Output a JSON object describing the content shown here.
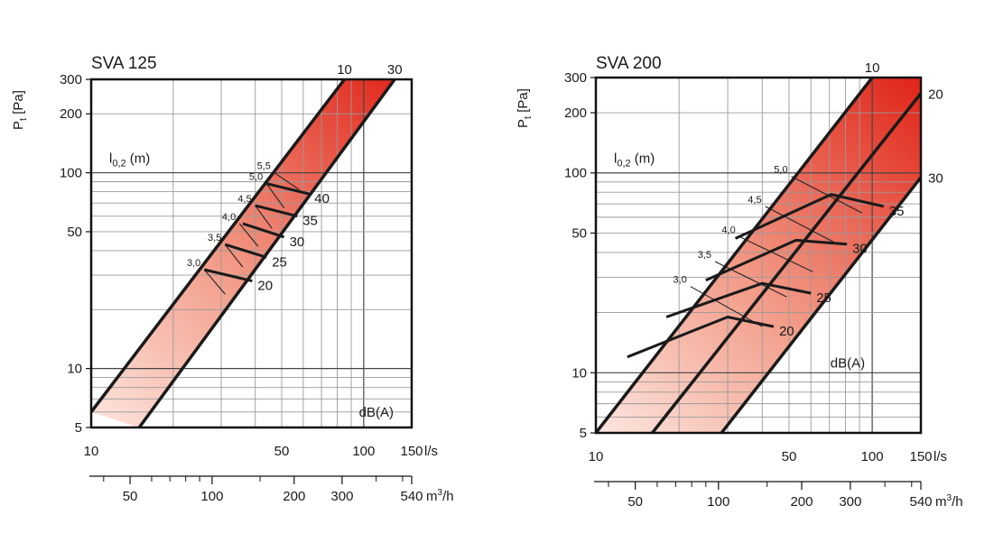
{
  "chart_data": [
    {
      "type": "line",
      "title": "SVA 125",
      "ylabel": "P",
      "ylabel_sub": "t",
      "ylabel_unit": "[Pa]",
      "xunit": "l/s",
      "x2unit": "m",
      "x2unit_sup": "3",
      "x2unit_rest": "/h",
      "xscale": "log",
      "yscale": "log",
      "xlim": [
        10,
        150
      ],
      "ylim": [
        5,
        300
      ],
      "x_ticks": [
        {
          "v": 10,
          "label": "10"
        },
        {
          "v": 50,
          "label": "50"
        },
        {
          "v": 100,
          "label": "100"
        },
        {
          "v": 150,
          "label": "150"
        }
      ],
      "y_ticks": [
        {
          "v": 5,
          "label": "5"
        },
        {
          "v": 10,
          "label": "10"
        },
        {
          "v": 50,
          "label": "50"
        },
        {
          "v": 100,
          "label": "100"
        },
        {
          "v": 200,
          "label": "200"
        },
        {
          "v": 300,
          "label": "300"
        }
      ],
      "x2_ticks": [
        {
          "v": 50,
          "label": "50"
        },
        {
          "v": 100,
          "label": "100"
        },
        {
          "v": 200,
          "label": "200"
        },
        {
          "v": 300,
          "label": "300"
        },
        {
          "v": 540,
          "label": "540"
        }
      ],
      "throw_label": "l",
      "throw_label_sub": "0,2",
      "throw_label_rest": " (m)",
      "db_label": "dB(A)",
      "band_colors": [
        "#fde6df",
        "#e02418"
      ],
      "boundaries": [
        {
          "label": "10",
          "points": [
            [
              10,
              6
            ],
            [
              85,
              300
            ]
          ]
        },
        {
          "label": "30",
          "points": [
            [
              15,
              5
            ],
            [
              130,
              300
            ]
          ]
        }
      ],
      "noise_lines": [
        {
          "label": "20",
          "points": [
            [
              26,
              32
            ],
            [
              39,
              28
            ]
          ]
        },
        {
          "label": "25",
          "points": [
            [
              31,
              43
            ],
            [
              44,
              37
            ]
          ]
        },
        {
          "label": "30",
          "points": [
            [
              36,
              55
            ],
            [
              51,
              47
            ]
          ]
        },
        {
          "label": "35",
          "points": [
            [
              40,
              68
            ],
            [
              57,
              60
            ]
          ]
        },
        {
          "label": "40",
          "points": [
            [
              44,
              88
            ],
            [
              63,
              78
            ]
          ]
        }
      ],
      "throw_lines": [
        {
          "label": "3,0",
          "points": [
            [
              26,
              32
            ],
            [
              31,
              24
            ]
          ]
        },
        {
          "label": "3,5",
          "points": [
            [
              31,
              43
            ],
            [
              36,
              33
            ]
          ]
        },
        {
          "label": "4,0",
          "points": [
            [
              35,
              55
            ],
            [
              41,
              42
            ]
          ]
        },
        {
          "label": "4,5",
          "points": [
            [
              40,
              68
            ],
            [
              46,
              52
            ]
          ]
        },
        {
          "label": "5,0",
          "points": [
            [
              44,
              88
            ],
            [
              51,
              66
            ]
          ]
        },
        {
          "label": "5,5",
          "points": [
            [
              47,
              100
            ],
            [
              58,
              82
            ]
          ]
        }
      ]
    },
    {
      "type": "line",
      "title": "SVA 200",
      "ylabel": "P",
      "ylabel_sub": "t",
      "ylabel_unit": "[Pa]",
      "xunit": "l/s",
      "x2unit": "m",
      "x2unit_sup": "3",
      "x2unit_rest": "/h",
      "xscale": "log",
      "yscale": "log",
      "xlim": [
        10,
        150
      ],
      "ylim": [
        5,
        300
      ],
      "x_ticks": [
        {
          "v": 10,
          "label": "10"
        },
        {
          "v": 50,
          "label": "50"
        },
        {
          "v": 100,
          "label": "100"
        },
        {
          "v": 150,
          "label": "150"
        }
      ],
      "y_ticks": [
        {
          "v": 5,
          "label": "5"
        },
        {
          "v": 10,
          "label": "10"
        },
        {
          "v": 50,
          "label": "50"
        },
        {
          "v": 100,
          "label": "100"
        },
        {
          "v": 200,
          "label": "200"
        },
        {
          "v": 300,
          "label": "300"
        }
      ],
      "x2_ticks": [
        {
          "v": 50,
          "label": "50"
        },
        {
          "v": 100,
          "label": "100"
        },
        {
          "v": 200,
          "label": "200"
        },
        {
          "v": 300,
          "label": "300"
        },
        {
          "v": 540,
          "label": "540"
        }
      ],
      "throw_label": "l",
      "throw_label_sub": "0,2",
      "throw_label_rest": " (m)",
      "db_label": "dB(A)",
      "band_colors": [
        "#fde6df",
        "#e02418"
      ],
      "boundaries": [
        {
          "label": "10",
          "points": [
            [
              10,
              5
            ],
            [
              100,
              300
            ]
          ]
        },
        {
          "label": "20",
          "points": [
            [
              16,
              5
            ],
            [
              150,
              250
            ]
          ]
        },
        {
          "label": "30",
          "points": [
            [
              28.5,
              5
            ],
            [
              150,
              95
            ]
          ]
        }
      ],
      "noise_lines": [
        {
          "label": "20",
          "points": [
            [
              13,
              12
            ],
            [
              30,
              19
            ],
            [
              44,
              17
            ]
          ]
        },
        {
          "label": "25",
          "points": [
            [
              18,
              19
            ],
            [
              40,
              28
            ],
            [
              60,
              25
            ]
          ]
        },
        {
          "label": "30",
          "points": [
            [
              25,
              29
            ],
            [
              53,
              46
            ],
            [
              81,
              44
            ]
          ]
        },
        {
          "label": "35",
          "points": [
            [
              32,
              47
            ],
            [
              71,
              78
            ],
            [
              110,
              68
            ]
          ]
        }
      ],
      "throw_lines": [
        {
          "label": "3,0",
          "points": [
            [
              22,
              27
            ],
            [
              40,
              17
            ]
          ]
        },
        {
          "label": "3,5",
          "points": [
            [
              27,
              36
            ],
            [
              49,
              24
            ]
          ]
        },
        {
          "label": "4,0",
          "points": [
            [
              33,
              48
            ],
            [
              61,
              32
            ]
          ]
        },
        {
          "label": "4,5",
          "points": [
            [
              41,
              68
            ],
            [
              75,
              44
            ]
          ]
        },
        {
          "label": "5,0",
          "points": [
            [
              51,
              96
            ],
            [
              92,
              63
            ]
          ]
        }
      ]
    }
  ]
}
